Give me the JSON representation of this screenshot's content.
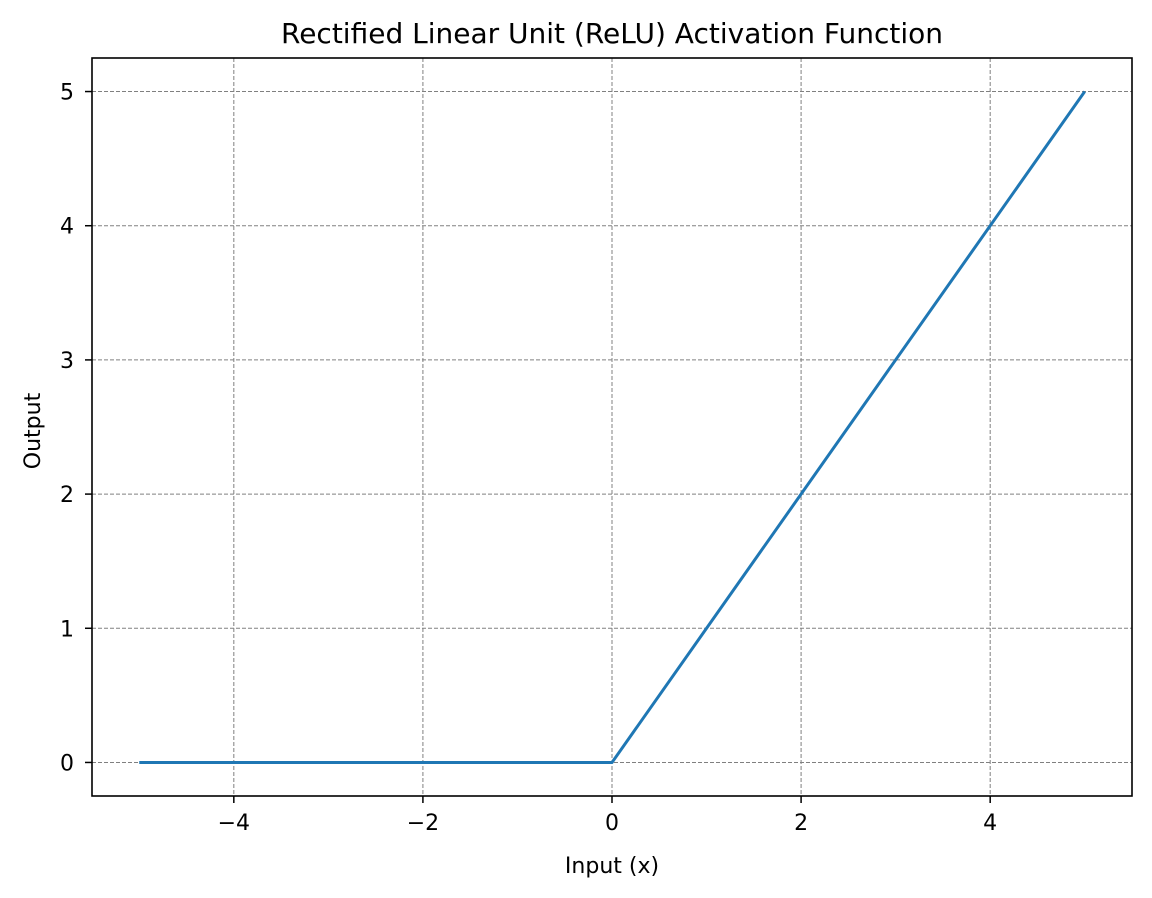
{
  "chart_data": {
    "type": "line",
    "title": "Rectified Linear Unit (ReLU) Activation Function",
    "xlabel": "Input (x)",
    "ylabel": "Output",
    "xlim": [
      -5.5,
      5.5
    ],
    "ylim": [
      -0.25,
      5.25
    ],
    "grid": true,
    "x_ticks": [
      -4,
      -2,
      0,
      2,
      4
    ],
    "x_tick_labels": [
      "−4",
      "−2",
      "0",
      "2",
      "4"
    ],
    "y_ticks": [
      0,
      1,
      2,
      3,
      4,
      5
    ],
    "y_tick_labels": [
      "0",
      "1",
      "2",
      "3",
      "4",
      "5"
    ],
    "series": [
      {
        "x": [
          -5,
          0,
          5
        ],
        "y": [
          0,
          0,
          5
        ],
        "color": "#1f77b4"
      }
    ]
  }
}
